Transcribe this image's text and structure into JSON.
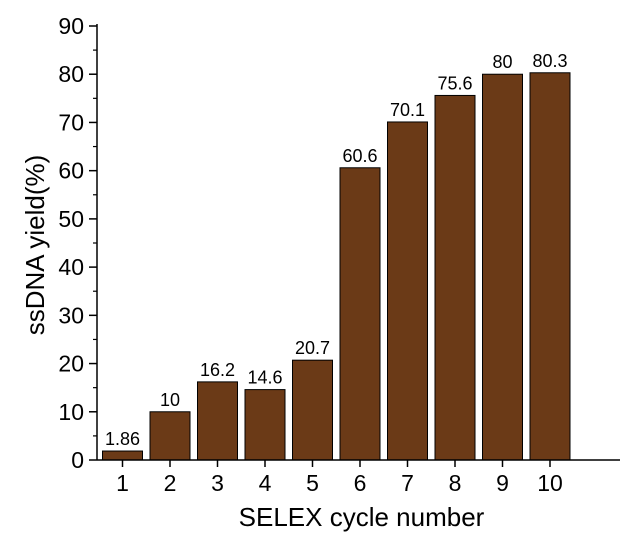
{
  "chart_data": {
    "type": "bar",
    "categories": [
      "1",
      "2",
      "3",
      "4",
      "5",
      "6",
      "7",
      "8",
      "9",
      "10"
    ],
    "values": [
      1.86,
      10,
      16.2,
      14.6,
      20.7,
      60.6,
      70.1,
      75.6,
      80,
      80.3
    ],
    "data_labels": [
      "1.86",
      "10",
      "16.2",
      "14.6",
      "20.7",
      "60.6",
      "70.1",
      "75.6",
      "80",
      "80.3"
    ],
    "y_ticks": [
      "0",
      "10",
      "20",
      "30",
      "40",
      "50",
      "60",
      "70",
      "80",
      "90"
    ],
    "xlabel": "SELEX cycle number",
    "ylabel": "ssDNA yield(%)",
    "ylim": [
      0,
      90
    ],
    "bar_color": "#6b3a17",
    "grid": false,
    "legend": "none"
  }
}
